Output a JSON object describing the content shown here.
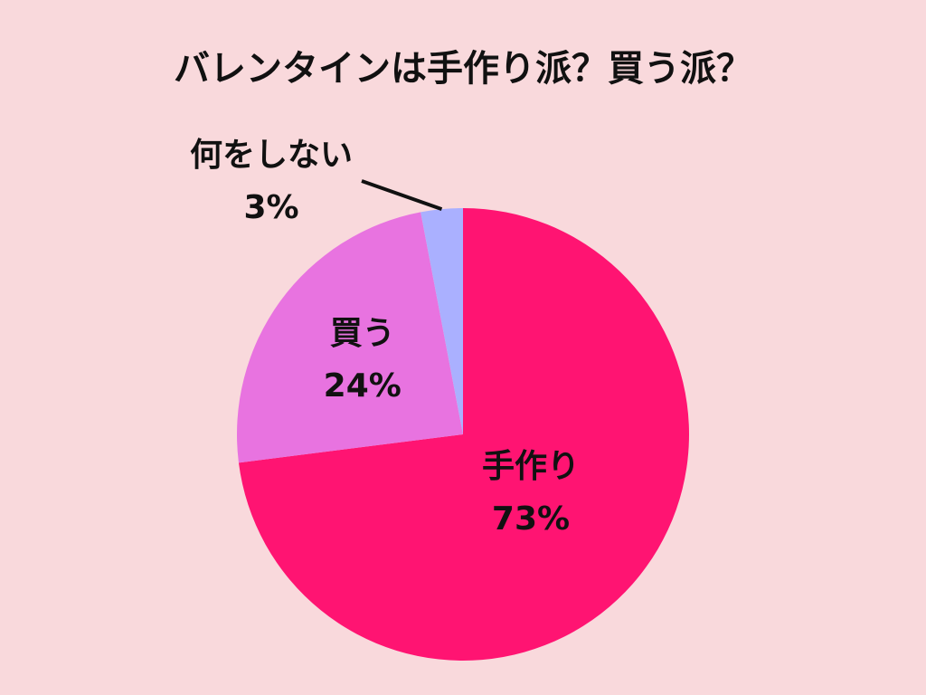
{
  "chart_data": {
    "type": "pie",
    "title": "バレンタインは手作り派？買う派？",
    "categories": [
      "手作り",
      "買う",
      "何をしない"
    ],
    "values": [
      73,
      24,
      3
    ],
    "value_labels": [
      "73%",
      "24%",
      "3%"
    ],
    "colors": [
      "#ff1472",
      "#e873e0",
      "#aab0ff"
    ]
  }
}
